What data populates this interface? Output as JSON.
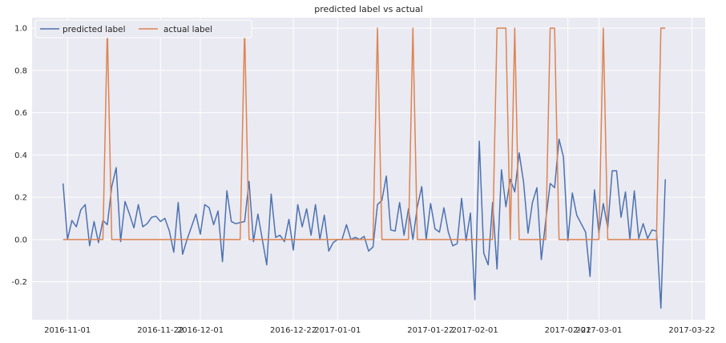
{
  "chart_data": {
    "type": "line",
    "title": "predicted label vs actual",
    "xlabel": "",
    "ylabel": "",
    "ylim": [
      -0.38,
      1.05
    ],
    "x_range": [
      "2016-10-24",
      "2017-03-25"
    ],
    "grid": true,
    "legend_position": "top-left",
    "yticks": [
      "-0.2",
      "0.0",
      "0.2",
      "0.4",
      "0.6",
      "0.8",
      "1.0"
    ],
    "xticks": [
      {
        "date": "2016-11-01",
        "label": "2016-11-01"
      },
      {
        "date": "2016-11-22",
        "label": "2016-11-22"
      },
      {
        "date": "2016-12-01",
        "label": "2016-12-01"
      },
      {
        "date": "2016-12-22",
        "label": "2016-12-22"
      },
      {
        "date": "2017-01-01",
        "label": "2017-01-01"
      },
      {
        "date": "2017-01-22",
        "label": "2017-01-22"
      },
      {
        "date": "2017-02-01",
        "label": "2017-02-01"
      },
      {
        "date": "2017-02-22",
        "label": "2017-02-22"
      },
      {
        "date": "2017-03-01",
        "label": "2017-03-01"
      },
      {
        "date": "2017-03-22",
        "label": "2017-03-22"
      }
    ],
    "series": [
      {
        "name": "predicted label",
        "color": "#4c72b0",
        "points": [
          [
            "2016-10-31",
            0.265
          ],
          [
            "2016-11-01",
            0.0
          ],
          [
            "2016-11-02",
            0.09
          ],
          [
            "2016-11-03",
            0.06
          ],
          [
            "2016-11-04",
            0.14
          ],
          [
            "2016-11-05",
            0.165
          ],
          [
            "2016-11-06",
            -0.03
          ],
          [
            "2016-11-07",
            0.085
          ],
          [
            "2016-11-08",
            -0.015
          ],
          [
            "2016-11-09",
            0.09
          ],
          [
            "2016-11-10",
            0.07
          ],
          [
            "2016-11-11",
            0.25
          ],
          [
            "2016-11-12",
            0.34
          ],
          [
            "2016-11-13",
            -0.01
          ],
          [
            "2016-11-14",
            0.18
          ],
          [
            "2016-11-15",
            0.12
          ],
          [
            "2016-11-16",
            0.055
          ],
          [
            "2016-11-17",
            0.165
          ],
          [
            "2016-11-18",
            0.06
          ],
          [
            "2016-11-19",
            0.075
          ],
          [
            "2016-11-20",
            0.105
          ],
          [
            "2016-11-21",
            0.11
          ],
          [
            "2016-11-22",
            0.085
          ],
          [
            "2016-11-23",
            0.1
          ],
          [
            "2016-11-24",
            0.04
          ],
          [
            "2016-11-25",
            -0.06
          ],
          [
            "2016-11-26",
            0.175
          ],
          [
            "2016-11-27",
            -0.07
          ],
          [
            "2016-11-28",
            0.0
          ],
          [
            "2016-11-29",
            0.06
          ],
          [
            "2016-11-30",
            0.12
          ],
          [
            "2016-12-01",
            0.025
          ],
          [
            "2016-12-02",
            0.165
          ],
          [
            "2016-12-03",
            0.15
          ],
          [
            "2016-12-04",
            0.07
          ],
          [
            "2016-12-05",
            0.135
          ],
          [
            "2016-12-06",
            -0.105
          ],
          [
            "2016-12-07",
            0.23
          ],
          [
            "2016-12-08",
            0.085
          ],
          [
            "2016-12-09",
            0.075
          ],
          [
            "2016-12-10",
            0.08
          ],
          [
            "2016-12-11",
            0.085
          ],
          [
            "2016-12-12",
            0.275
          ],
          [
            "2016-12-13",
            -0.01
          ],
          [
            "2016-12-14",
            0.12
          ],
          [
            "2016-12-15",
            0.0
          ],
          [
            "2016-12-16",
            -0.12
          ],
          [
            "2016-12-17",
            0.215
          ],
          [
            "2016-12-18",
            0.01
          ],
          [
            "2016-12-19",
            0.02
          ],
          [
            "2016-12-20",
            -0.01
          ],
          [
            "2016-12-21",
            0.095
          ],
          [
            "2016-12-22",
            -0.05
          ],
          [
            "2016-12-23",
            0.165
          ],
          [
            "2016-12-24",
            0.06
          ],
          [
            "2016-12-25",
            0.145
          ],
          [
            "2016-12-26",
            0.02
          ],
          [
            "2016-12-27",
            0.165
          ],
          [
            "2016-12-28",
            0.0
          ],
          [
            "2016-12-29",
            0.115
          ],
          [
            "2016-12-30",
            -0.055
          ],
          [
            "2016-12-31",
            -0.015
          ],
          [
            "2017-01-01",
            0.0
          ],
          [
            "2017-01-02",
            0.0
          ],
          [
            "2017-01-03",
            0.07
          ],
          [
            "2017-01-04",
            0.0
          ],
          [
            "2017-01-05",
            0.01
          ],
          [
            "2017-01-06",
            0.0
          ],
          [
            "2017-01-07",
            0.015
          ],
          [
            "2017-01-08",
            -0.055
          ],
          [
            "2017-01-09",
            -0.035
          ],
          [
            "2017-01-10",
            0.165
          ],
          [
            "2017-01-11",
            0.185
          ],
          [
            "2017-01-12",
            0.3
          ],
          [
            "2017-01-13",
            0.045
          ],
          [
            "2017-01-14",
            0.04
          ],
          [
            "2017-01-15",
            0.175
          ],
          [
            "2017-01-16",
            0.02
          ],
          [
            "2017-01-17",
            0.145
          ],
          [
            "2017-01-18",
            0.0
          ],
          [
            "2017-01-19",
            0.155
          ],
          [
            "2017-01-20",
            0.25
          ],
          [
            "2017-01-21",
            0.0
          ],
          [
            "2017-01-22",
            0.17
          ],
          [
            "2017-01-23",
            0.05
          ],
          [
            "2017-01-24",
            0.035
          ],
          [
            "2017-01-25",
            0.15
          ],
          [
            "2017-01-26",
            0.035
          ],
          [
            "2017-01-27",
            -0.03
          ],
          [
            "2017-01-28",
            -0.02
          ],
          [
            "2017-01-29",
            0.195
          ],
          [
            "2017-01-30",
            -0.005
          ],
          [
            "2017-01-31",
            0.125
          ],
          [
            "2017-02-01",
            -0.285
          ],
          [
            "2017-02-02",
            0.465
          ],
          [
            "2017-02-03",
            -0.065
          ],
          [
            "2017-02-04",
            -0.12
          ],
          [
            "2017-02-05",
            0.175
          ],
          [
            "2017-02-06",
            -0.14
          ],
          [
            "2017-02-07",
            0.33
          ],
          [
            "2017-02-08",
            0.155
          ],
          [
            "2017-02-09",
            0.285
          ],
          [
            "2017-02-10",
            0.225
          ],
          [
            "2017-02-11",
            0.41
          ],
          [
            "2017-02-12",
            0.27
          ],
          [
            "2017-02-13",
            0.03
          ],
          [
            "2017-02-14",
            0.175
          ],
          [
            "2017-02-15",
            0.245
          ],
          [
            "2017-02-16",
            -0.095
          ],
          [
            "2017-02-17",
            0.09
          ],
          [
            "2017-02-18",
            0.265
          ],
          [
            "2017-02-19",
            0.245
          ],
          [
            "2017-02-20",
            0.475
          ],
          [
            "2017-02-21",
            0.39
          ],
          [
            "2017-02-22",
            -0.005
          ],
          [
            "2017-02-23",
            0.22
          ],
          [
            "2017-02-24",
            0.115
          ],
          [
            "2017-02-25",
            0.075
          ],
          [
            "2017-02-26",
            0.035
          ],
          [
            "2017-02-27",
            -0.175
          ],
          [
            "2017-02-28",
            0.235
          ],
          [
            "2017-03-01",
            0.03
          ],
          [
            "2017-03-02",
            0.17
          ],
          [
            "2017-03-03",
            0.055
          ],
          [
            "2017-03-04",
            0.325
          ],
          [
            "2017-03-05",
            0.325
          ],
          [
            "2017-03-06",
            0.105
          ],
          [
            "2017-03-07",
            0.225
          ],
          [
            "2017-03-08",
            0.0
          ],
          [
            "2017-03-09",
            0.23
          ],
          [
            "2017-03-10",
            0.005
          ],
          [
            "2017-03-11",
            0.075
          ],
          [
            "2017-03-12",
            0.005
          ],
          [
            "2017-03-13",
            0.045
          ],
          [
            "2017-03-14",
            0.04
          ],
          [
            "2017-03-15",
            -0.325
          ],
          [
            "2017-03-16",
            0.285
          ]
        ]
      },
      {
        "name": "actual label",
        "color": "#dd8452",
        "points": [
          [
            "2016-10-31",
            0
          ],
          [
            "2016-11-09",
            0
          ],
          [
            "2016-11-10",
            1
          ],
          [
            "2016-11-11",
            0
          ],
          [
            "2016-12-10",
            0
          ],
          [
            "2016-12-11",
            1
          ],
          [
            "2016-12-12",
            0
          ],
          [
            "2017-01-09",
            0
          ],
          [
            "2017-01-10",
            1
          ],
          [
            "2017-01-11",
            0
          ],
          [
            "2017-01-17",
            0
          ],
          [
            "2017-01-18",
            1
          ],
          [
            "2017-01-19",
            0
          ],
          [
            "2017-02-05",
            0
          ],
          [
            "2017-02-06",
            1
          ],
          [
            "2017-02-07",
            1
          ],
          [
            "2017-02-08",
            1
          ],
          [
            "2017-02-09",
            0
          ],
          [
            "2017-02-10",
            1
          ],
          [
            "2017-02-11",
            0
          ],
          [
            "2017-02-17",
            0
          ],
          [
            "2017-02-18",
            1
          ],
          [
            "2017-02-19",
            1
          ],
          [
            "2017-02-20",
            0
          ],
          [
            "2017-03-01",
            0
          ],
          [
            "2017-03-02",
            1
          ],
          [
            "2017-03-03",
            0
          ],
          [
            "2017-03-14",
            0
          ],
          [
            "2017-03-15",
            1
          ],
          [
            "2017-03-16",
            1
          ]
        ]
      }
    ]
  }
}
